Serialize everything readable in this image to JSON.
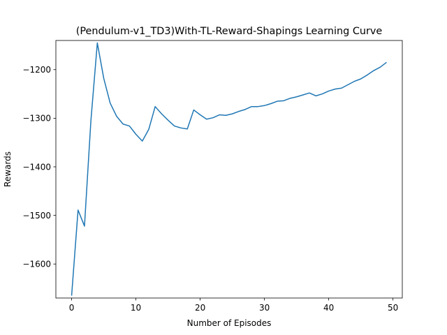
{
  "chart_data": {
    "type": "line",
    "title": "(Pendulum-v1_TD3)With-TL-Reward-Shapings Learning Curve",
    "xlabel": "Number of Episodes",
    "ylabel": "Rewards",
    "xlim": [
      -2.45,
      51.45
    ],
    "ylim": [
      -1670,
      -1140
    ],
    "xticks": [
      0,
      10,
      20,
      30,
      40,
      50
    ],
    "yticks": [
      -1600,
      -1500,
      -1400,
      -1300,
      -1200
    ],
    "grid": false,
    "legend": "none",
    "series": [
      {
        "color": "#1f77b4",
        "x": [
          0,
          1,
          2,
          3,
          4,
          5,
          6,
          7,
          8,
          9,
          10,
          11,
          12,
          13,
          14,
          15,
          16,
          17,
          18,
          19,
          20,
          21,
          22,
          23,
          24,
          25,
          26,
          27,
          28,
          29,
          30,
          31,
          32,
          33,
          34,
          35,
          36,
          37,
          38,
          39,
          40,
          41,
          42,
          43,
          44,
          45,
          46,
          47,
          48,
          49
        ],
        "values": [
          -1665,
          -1489,
          -1522,
          -1305,
          -1145,
          -1218,
          -1269,
          -1296,
          -1312,
          -1316,
          -1333,
          -1347,
          -1323,
          -1276,
          -1291,
          -1304,
          -1316,
          -1320,
          -1322,
          -1283,
          -1293,
          -1302,
          -1299,
          -1293,
          -1294,
          -1291,
          -1286,
          -1282,
          -1276,
          -1276,
          -1274,
          -1270,
          -1265,
          -1264,
          -1259,
          -1256,
          -1252,
          -1248,
          -1254,
          -1250,
          -1244,
          -1240,
          -1238,
          -1231,
          -1224,
          -1219,
          -1211,
          -1202,
          -1195,
          -1185
        ]
      }
    ]
  }
}
